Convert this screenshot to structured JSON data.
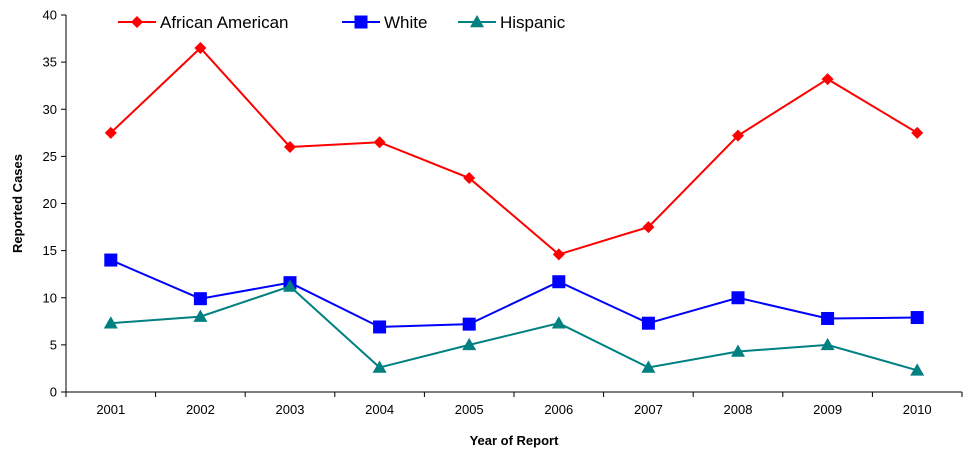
{
  "chart_data": {
    "type": "line",
    "title": "",
    "xlabel": "Year of Report",
    "ylabel": "Reported Cases",
    "categories": [
      "2001",
      "2002",
      "2003",
      "2004",
      "2005",
      "2006",
      "2007",
      "2008",
      "2009",
      "2010"
    ],
    "ylim": [
      0,
      40
    ],
    "yticks": [
      0,
      5,
      10,
      15,
      20,
      25,
      30,
      35,
      40
    ],
    "grid": false,
    "legend_position": "top-left",
    "series": [
      {
        "name": "African American",
        "color": "#ff0000",
        "marker": "diamond",
        "values": [
          27.5,
          36.5,
          26.0,
          26.5,
          22.7,
          14.6,
          17.5,
          27.2,
          33.2,
          27.5
        ]
      },
      {
        "name": "White",
        "color": "#0000ff",
        "marker": "square",
        "values": [
          14.0,
          9.9,
          11.6,
          6.9,
          7.2,
          11.7,
          7.3,
          10.0,
          7.8,
          7.9
        ]
      },
      {
        "name": "Hispanic",
        "color": "#008080",
        "marker": "triangle",
        "values": [
          7.3,
          8.0,
          11.2,
          2.6,
          5.0,
          7.3,
          2.6,
          4.3,
          5.0,
          2.3
        ]
      }
    ]
  }
}
